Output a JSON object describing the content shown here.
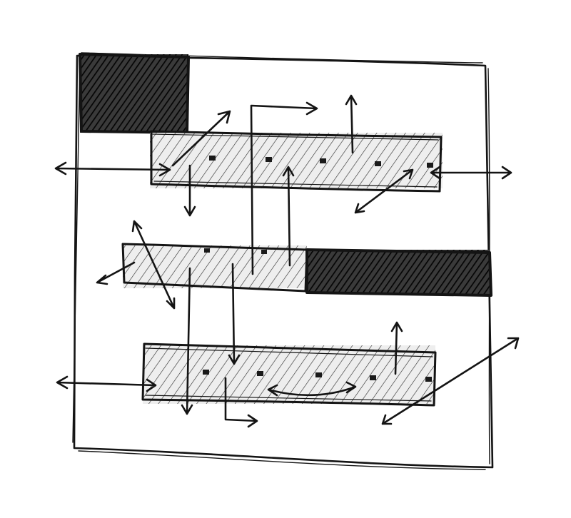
{
  "title": "",
  "colors": {
    "ink": "#141414",
    "paper": "#ffffff",
    "bar_fill": "#e9e9e9",
    "dark_fill": "#1a1a1a"
  },
  "elements": {
    "frame": {
      "shape": "square-outline"
    },
    "blocks": [
      {
        "name": "top-left-dark-block",
        "style": "dark-hatched"
      },
      {
        "name": "top-bar",
        "style": "light-hatched-dotted"
      },
      {
        "name": "middle-bar",
        "style": "light-hatched"
      },
      {
        "name": "middle-right-dark-block",
        "style": "dark-hatched"
      },
      {
        "name": "bottom-bar",
        "style": "light-hatched-dotted"
      }
    ],
    "arrow_count": 20
  }
}
